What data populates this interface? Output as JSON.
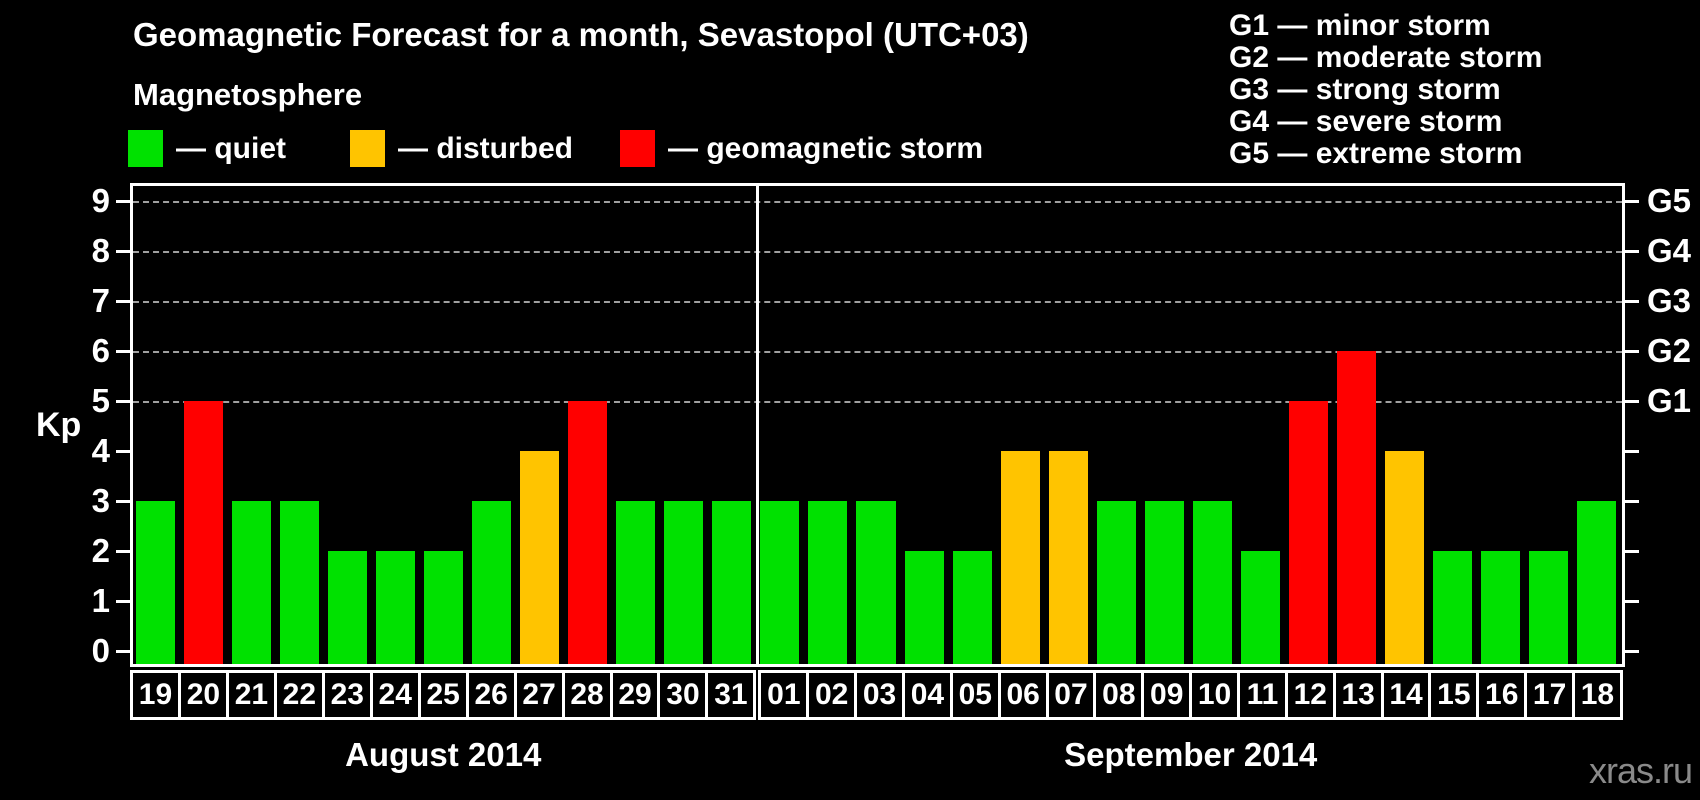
{
  "title": "Geomagnetic Forecast for a month, Sevastopol (UTC+03)",
  "subtitle": "Magnetosphere",
  "legend": [
    {
      "key": "quiet",
      "label": "— quiet",
      "color": "#00e100"
    },
    {
      "key": "disturbed",
      "label": "— disturbed",
      "color": "#ffc400"
    },
    {
      "key": "storm",
      "label": "— geomagnetic storm",
      "color": "#ff0000"
    }
  ],
  "g_legend": [
    "G1 — minor storm",
    "G2 — moderate storm",
    "G3 — strong storm",
    "G4 — severe storm",
    "G5 — extreme storm"
  ],
  "watermark": "xras.ru",
  "colors": {
    "background": "#000000",
    "axis": "#ffffff",
    "grid": "#a0a0a0",
    "text": "#ffffff",
    "watermark": "#8a8a8a"
  },
  "chart_data": {
    "type": "bar",
    "title": "Geomagnetic Forecast for a month, Sevastopol (UTC+03)",
    "xlabel": "",
    "ylabel": "Kp",
    "ylim": [
      0,
      9.5
    ],
    "y_ticks": [
      0,
      1,
      2,
      3,
      4,
      5,
      6,
      7,
      8,
      9
    ],
    "gridlines_at": [
      5,
      6,
      7,
      8,
      9
    ],
    "grid": "dashed",
    "legend_position": "top-left",
    "right_axis_labels": [
      {
        "value": 5,
        "label": "G1"
      },
      {
        "value": 6,
        "label": "G2"
      },
      {
        "value": 7,
        "label": "G3"
      },
      {
        "value": 8,
        "label": "G4"
      },
      {
        "value": 9,
        "label": "G5"
      }
    ],
    "color_rules": {
      "quiet_max": 3,
      "disturbed_value": 4,
      "storm_min": 5
    },
    "groups": [
      {
        "label": "August 2014",
        "days": [
          "19",
          "20",
          "21",
          "22",
          "23",
          "24",
          "25",
          "26",
          "27",
          "28",
          "29",
          "30",
          "31"
        ],
        "values": [
          3,
          5,
          3,
          3,
          2,
          2,
          2,
          3,
          4,
          5,
          3,
          3,
          3
        ]
      },
      {
        "label": "September 2014",
        "days": [
          "01",
          "02",
          "03",
          "04",
          "05",
          "06",
          "07",
          "08",
          "09",
          "10",
          "11",
          "12",
          "13",
          "14",
          "15",
          "16",
          "17",
          "18"
        ],
        "values": [
          3,
          3,
          3,
          2,
          2,
          4,
          4,
          3,
          3,
          3,
          2,
          5,
          6,
          4,
          2,
          2,
          2,
          3
        ]
      }
    ]
  }
}
